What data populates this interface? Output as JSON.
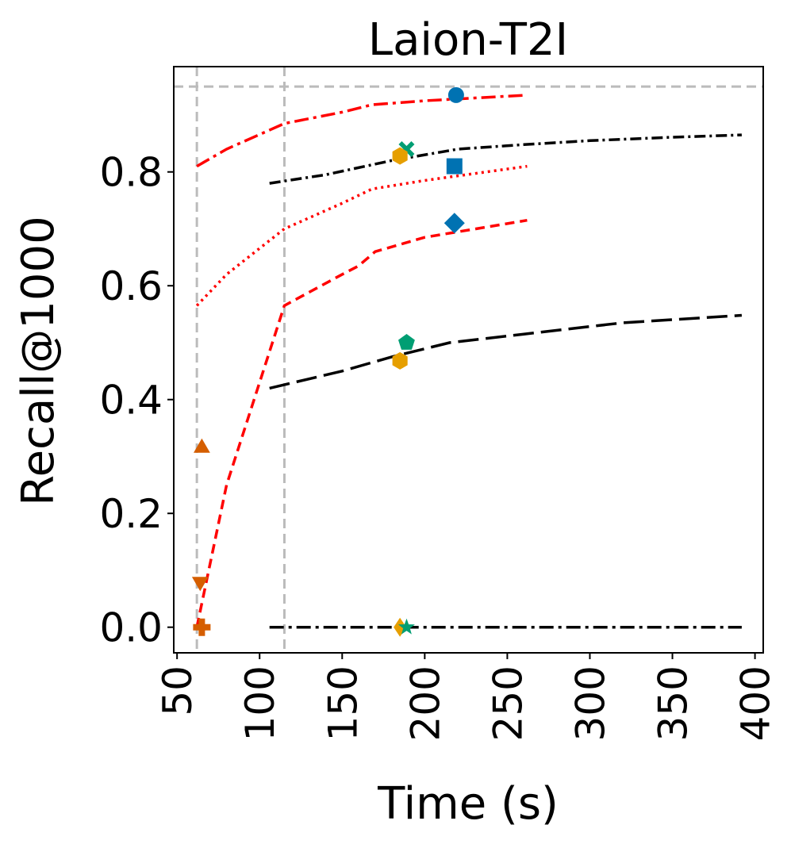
{
  "chart_data": {
    "type": "line",
    "title": "Laion-T2I",
    "xlabel": "Time (s)",
    "ylabel": "Recall@1000",
    "xlim": [
      48,
      405
    ],
    "ylim": [
      -0.045,
      0.985
    ],
    "xticks": [
      50,
      100,
      150,
      200,
      250,
      300,
      350,
      400
    ],
    "xtick_labels": [
      "50",
      "100",
      "150",
      "200",
      "250",
      "300",
      "350",
      "400"
    ],
    "yticks": [
      0.0,
      0.2,
      0.4,
      0.6,
      0.8
    ],
    "ytick_labels": [
      "0.0",
      "0.2",
      "0.4",
      "0.6",
      "0.8"
    ],
    "grid": false,
    "reference_lines": [
      {
        "orientation": "horizontal",
        "value": 0.95,
        "color": "#bbbbbb",
        "dash": "dashed"
      },
      {
        "orientation": "vertical",
        "value": 62,
        "color": "#bbbbbb",
        "dash": "dashed"
      },
      {
        "orientation": "vertical",
        "value": 115,
        "color": "#bbbbbb",
        "dash": "dashed"
      }
    ],
    "series": [
      {
        "name": "red-dashdot",
        "color": "#ff0000",
        "dash": "dashdot",
        "x": [
          62,
          80,
          115,
          150,
          168,
          200,
          262
        ],
        "y": [
          0.81,
          0.84,
          0.885,
          0.905,
          0.918,
          0.925,
          0.935
        ]
      },
      {
        "name": "red-dotted",
        "color": "#ff0000",
        "dash": "dotted",
        "x": [
          62,
          80,
          115,
          150,
          168,
          200,
          262
        ],
        "y": [
          0.565,
          0.62,
          0.7,
          0.745,
          0.77,
          0.785,
          0.81
        ]
      },
      {
        "name": "red-dashed",
        "color": "#ff0000",
        "dash": "dashed",
        "x": [
          62,
          80,
          115,
          150,
          160,
          170,
          200,
          262
        ],
        "y": [
          0.0,
          0.25,
          0.565,
          0.62,
          0.635,
          0.66,
          0.685,
          0.715
        ]
      },
      {
        "name": "black-dashdot-dot",
        "color": "#000000",
        "dash": "dashdotdot",
        "x": [
          106,
          140,
          180,
          220,
          260,
          300,
          350,
          392
        ],
        "y": [
          0.78,
          0.795,
          0.82,
          0.84,
          0.848,
          0.855,
          0.861,
          0.865
        ]
      },
      {
        "name": "black-longdash",
        "color": "#000000",
        "dash": "longdash",
        "x": [
          106,
          150,
          180,
          215,
          260,
          320,
          392
        ],
        "y": [
          0.42,
          0.45,
          0.475,
          0.5,
          0.515,
          0.535,
          0.548
        ]
      },
      {
        "name": "black-dashdot-flat",
        "color": "#000000",
        "dash": "dashdot",
        "x": [
          106,
          392
        ],
        "y": [
          0.0,
          0.0
        ]
      }
    ],
    "markers": [
      {
        "shape": "circle",
        "color": "#0072b2",
        "x": 219,
        "y": 0.935
      },
      {
        "shape": "x",
        "color": "#009e73",
        "x": 189,
        "y": 0.84
      },
      {
        "shape": "hexagon",
        "color": "#e69f00",
        "x": 185,
        "y": 0.828
      },
      {
        "shape": "square",
        "color": "#0072b2",
        "x": 218,
        "y": 0.81
      },
      {
        "shape": "diamond",
        "color": "#0072b2",
        "x": 218,
        "y": 0.71
      },
      {
        "shape": "pentagon",
        "color": "#009e73",
        "x": 189,
        "y": 0.5
      },
      {
        "shape": "hexagon",
        "color": "#e69f00",
        "x": 185,
        "y": 0.468
      },
      {
        "shape": "triangle-up",
        "color": "#d55e00",
        "x": 65,
        "y": 0.315
      },
      {
        "shape": "triangle-down",
        "color": "#d55e00",
        "x": 64,
        "y": 0.08
      },
      {
        "shape": "plus",
        "color": "#d55e00",
        "x": 65,
        "y": 0.0
      },
      {
        "shape": "diamond-thin",
        "color": "#e69f00",
        "x": 185,
        "y": 0.0
      },
      {
        "shape": "star",
        "color": "#009e73",
        "x": 189,
        "y": 0.0
      }
    ]
  }
}
